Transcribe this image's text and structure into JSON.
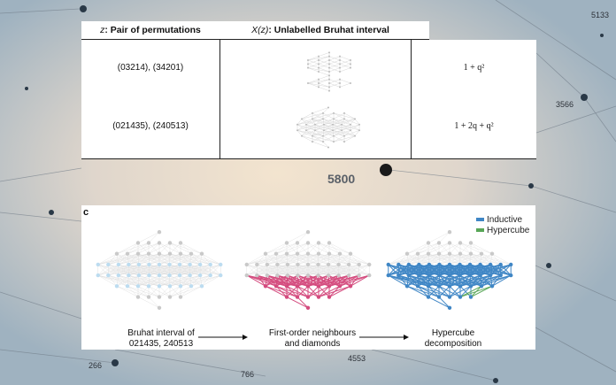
{
  "table": {
    "header": {
      "col1_var": "z",
      "col1_text": ": Pair of permutations",
      "col2_var": "X(z)",
      "col2_text": ": Unlabelled Bruhat interval"
    },
    "rows": [
      {
        "pair": "(03214), (34201)",
        "poly": "1 + q²"
      },
      {
        "pair": "(021435), (240513)",
        "poly": "1 + 2q + q²"
      }
    ]
  },
  "panel_c": {
    "label": "c",
    "legend": [
      {
        "name": "Inductive",
        "color": "#3f86c5"
      },
      {
        "name": "Hypercube",
        "color": "#58a657"
      }
    ],
    "captions": {
      "left_line1": "Bruhat interval of",
      "left_line2": "021435, 240513",
      "mid_line1": "First-order neighbours",
      "mid_line2": "and diamonds",
      "right_line1": "Hypercube",
      "right_line2": "decomposition"
    },
    "colors": {
      "light_node": "#bcdcf0",
      "grey_node": "#c9c9c9",
      "pink": "#d44b7e",
      "blue": "#3f86c5",
      "green": "#58a657"
    }
  },
  "background": {
    "numbers": [
      "5133",
      "3566",
      "5800",
      "266",
      "766",
      "4553"
    ]
  }
}
